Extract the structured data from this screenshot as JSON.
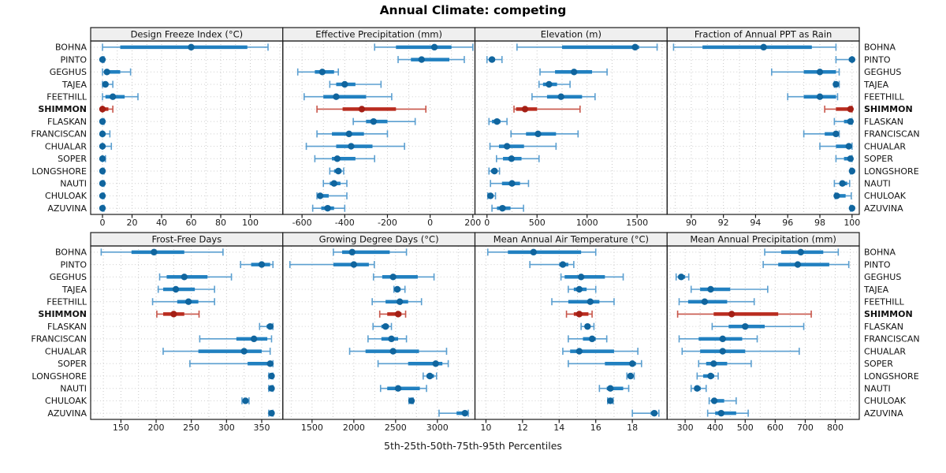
{
  "header": {
    "title": "Annual Climate: competing"
  },
  "footer": {
    "xlabel": "5th-25th-50th-75th-95th Percentiles"
  },
  "sites": [
    "BOHNA",
    "PINTO",
    "GEGHUS",
    "TAJEA",
    "FEETHILL",
    "SHIMMON",
    "FLASKAN",
    "FRANCISCAN",
    "CHUALAR",
    "SOPER",
    "LONGSHORE",
    "NAUTI",
    "CHULOAK",
    "AZUVINA"
  ],
  "highlight_site": "SHIMMON",
  "colors": {
    "blue_thin": "#5b9fd0",
    "blue_thick": "#2180c0",
    "blue_dot": "#10659e",
    "red_thin": "#c8564a",
    "red_thick": "#b92c1f",
    "red_dot": "#a41f15",
    "grid": "#c9c9c9",
    "row_line": "#cfcfcf",
    "panel_border": "#1a1a1a",
    "header_fill": "#efefef",
    "tick_text": "#1a1a1a"
  },
  "chart_data": {
    "type": "interval",
    "note": "horizontal 5-25-50-75-95 percentile intervals per site; dot = median, thick bar = 25-75, thin whisker = 5-95",
    "legend_position": "none",
    "grid": "dotted",
    "panels": [
      {
        "title": "Design Freeze Index (°C)",
        "xlim": [
          -8,
          122
        ],
        "ticks": [
          0,
          20,
          40,
          60,
          80,
          100
        ],
        "grid_step": 10,
        "values": [
          [
            0,
            12,
            60,
            98,
            112
          ],
          [
            0,
            0,
            0,
            0,
            1
          ],
          [
            0,
            2,
            3,
            12,
            19
          ],
          [
            0,
            1,
            2,
            4,
            7
          ],
          [
            0,
            2,
            7,
            15,
            24
          ],
          [
            0,
            0,
            0,
            4,
            7
          ],
          [
            0,
            0,
            0,
            0,
            1
          ],
          [
            0,
            0,
            0,
            1,
            5
          ],
          [
            0,
            0,
            0,
            1,
            6
          ],
          [
            0,
            0,
            0,
            0,
            2
          ],
          [
            0,
            0,
            0,
            0,
            1
          ],
          [
            0,
            0,
            0,
            0,
            1
          ],
          [
            0,
            0,
            0,
            0,
            1
          ],
          [
            0,
            0,
            0,
            0,
            1
          ]
        ]
      },
      {
        "title": "Effective Precipitation (mm)",
        "xlim": [
          -690,
          210
        ],
        "ticks": [
          -600,
          -400,
          -200,
          0,
          200
        ],
        "grid_step": 100,
        "values": [
          [
            -260,
            -160,
            20,
            100,
            200
          ],
          [
            -150,
            -90,
            -40,
            90,
            160
          ],
          [
            -620,
            -540,
            -505,
            -450,
            -430
          ],
          [
            -470,
            -440,
            -400,
            -350,
            -230
          ],
          [
            -590,
            -500,
            -440,
            -300,
            -180
          ],
          [
            -530,
            -410,
            -320,
            -160,
            -20
          ],
          [
            -360,
            -300,
            -265,
            -200,
            -70
          ],
          [
            -530,
            -460,
            -380,
            -310,
            -200
          ],
          [
            -580,
            -440,
            -370,
            -270,
            -120
          ],
          [
            -540,
            -460,
            -435,
            -350,
            -260
          ],
          [
            -470,
            -450,
            -430,
            -415,
            -405
          ],
          [
            -500,
            -470,
            -450,
            -420,
            -390
          ],
          [
            -530,
            -525,
            -515,
            -475,
            -390
          ],
          [
            -550,
            -510,
            -480,
            -450,
            -400
          ]
        ]
      },
      {
        "title": "Elevation (m)",
        "xlim": [
          -120,
          1800
        ],
        "ticks": [
          0,
          500,
          1000,
          1500
        ],
        "grid_step": 250,
        "values": [
          [
            300,
            750,
            1480,
            1520,
            1700
          ],
          [
            0,
            20,
            50,
            80,
            150
          ],
          [
            530,
            680,
            870,
            1050,
            1200
          ],
          [
            520,
            560,
            620,
            700,
            830
          ],
          [
            450,
            600,
            740,
            950,
            1080
          ],
          [
            270,
            290,
            380,
            500,
            930
          ],
          [
            20,
            50,
            100,
            135,
            200
          ],
          [
            240,
            390,
            510,
            690,
            910
          ],
          [
            30,
            120,
            200,
            370,
            690
          ],
          [
            95,
            160,
            245,
            345,
            520
          ],
          [
            20,
            40,
            75,
            105,
            125
          ],
          [
            35,
            150,
            250,
            330,
            415
          ],
          [
            8,
            20,
            35,
            60,
            85
          ],
          [
            50,
            100,
            155,
            235,
            365
          ]
        ]
      },
      {
        "title": "Fraction of Annual PPT as Rain",
        "xlim": [
          88.5,
          100.45
        ],
        "ticks": [
          90,
          92,
          94,
          96,
          98,
          100
        ],
        "grid_step": 1,
        "values": [
          [
            88.9,
            90.7,
            94.5,
            97.5,
            99.0
          ],
          [
            99.0,
            99.8,
            100,
            100,
            100
          ],
          [
            95.0,
            97.0,
            98.0,
            99.0,
            99.2
          ],
          [
            98.9,
            99.0,
            99.0,
            99.1,
            99.2
          ],
          [
            96.0,
            97.0,
            98.0,
            99.0,
            99.1
          ],
          [
            98.3,
            99.0,
            99.9,
            100,
            100
          ],
          [
            98.9,
            99.5,
            99.9,
            100,
            100
          ],
          [
            97.0,
            98.3,
            99.0,
            99.1,
            99.2
          ],
          [
            98.0,
            99.0,
            99.8,
            100,
            100
          ],
          [
            99.0,
            99.5,
            99.9,
            100,
            100
          ],
          [
            99.9,
            99.95,
            100,
            100,
            100
          ],
          [
            98.9,
            99.3,
            99.4,
            99.7,
            99.85
          ],
          [
            98.95,
            99.0,
            99.05,
            99.6,
            99.95
          ],
          [
            99.9,
            99.95,
            100,
            100,
            100
          ]
        ]
      },
      {
        "title": "Frost-Free Days",
        "xlim": [
          107,
          380
        ],
        "ticks": [
          150,
          200,
          250,
          300,
          350
        ],
        "grid_step": 25,
        "values": [
          [
            122,
            165,
            197,
            240,
            295
          ],
          [
            320,
            335,
            350,
            362,
            366
          ],
          [
            205,
            215,
            240,
            273,
            307
          ],
          [
            203,
            210,
            228,
            255,
            283
          ],
          [
            195,
            230,
            246,
            260,
            283
          ],
          [
            201,
            210,
            225,
            240,
            261
          ],
          [
            347,
            357,
            362,
            365,
            366
          ],
          [
            262,
            314,
            339,
            358,
            364
          ],
          [
            210,
            260,
            325,
            350,
            362
          ],
          [
            248,
            330,
            362,
            365,
            366
          ],
          [
            360,
            362,
            364,
            365,
            366
          ],
          [
            360,
            362,
            364,
            365,
            366
          ],
          [
            322,
            325,
            327,
            330,
            332
          ],
          [
            360,
            362,
            364,
            365,
            366
          ]
        ]
      },
      {
        "title": "Growing Degree Days (°C)",
        "xlim": [
          1150,
          3450
        ],
        "ticks": [
          1500,
          2000,
          2500,
          3000
        ],
        "grid_step": 250,
        "values": [
          [
            1755,
            1860,
            1980,
            2430,
            2630
          ],
          [
            1235,
            1755,
            2000,
            2180,
            2245
          ],
          [
            2235,
            2340,
            2470,
            2765,
            2960
          ],
          [
            2480,
            2495,
            2520,
            2560,
            2612
          ],
          [
            2220,
            2380,
            2550,
            2650,
            2810
          ],
          [
            2310,
            2400,
            2530,
            2570,
            2620
          ],
          [
            2230,
            2330,
            2380,
            2420,
            2450
          ],
          [
            2170,
            2330,
            2450,
            2530,
            2630
          ],
          [
            1950,
            2140,
            2470,
            2780,
            3110
          ],
          [
            2290,
            2650,
            2980,
            3060,
            3130
          ],
          [
            2830,
            2870,
            2910,
            2960,
            2990
          ],
          [
            2320,
            2400,
            2530,
            2790,
            2870
          ],
          [
            2660,
            2680,
            2690,
            2700,
            2710
          ],
          [
            3020,
            3230,
            3330,
            3360,
            3370
          ]
        ]
      },
      {
        "title": "Mean Annual Air Temperature (°C)",
        "xlim": [
          9.4,
          19.9
        ],
        "ticks": [
          10,
          12,
          14,
          16,
          18
        ],
        "grid_step": 1,
        "values": [
          [
            10.1,
            11.2,
            12.6,
            15.2,
            16.0
          ],
          [
            12.4,
            14.0,
            14.2,
            14.5,
            14.8
          ],
          [
            14.1,
            14.3,
            15.2,
            16.5,
            17.5
          ],
          [
            14.5,
            14.8,
            15.1,
            15.5,
            16.0
          ],
          [
            13.6,
            14.5,
            15.7,
            16.2,
            17.0
          ],
          [
            14.4,
            14.8,
            15.1,
            15.6,
            15.8
          ],
          [
            15.2,
            15.4,
            15.55,
            15.7,
            15.9
          ],
          [
            14.5,
            15.3,
            15.8,
            16.0,
            16.6
          ],
          [
            14.2,
            14.6,
            15.1,
            17.0,
            18.3
          ],
          [
            14.5,
            16.5,
            18.0,
            18.2,
            18.5
          ],
          [
            17.7,
            17.8,
            17.9,
            18.0,
            18.1
          ],
          [
            16.2,
            16.6,
            16.8,
            17.5,
            17.8
          ],
          [
            16.65,
            16.75,
            16.8,
            16.85,
            16.95
          ],
          [
            18.0,
            19.0,
            19.2,
            19.35,
            19.45
          ]
        ]
      },
      {
        "title": "Mean Annual Precipitation (mm)",
        "xlim": [
          240,
          880
        ],
        "ticks": [
          300,
          400,
          500,
          600,
          700,
          800
        ],
        "grid_step": 50,
        "values": [
          [
            565,
            620,
            685,
            760,
            810
          ],
          [
            560,
            610,
            675,
            780,
            845
          ],
          [
            270,
            277,
            287,
            300,
            312
          ],
          [
            320,
            350,
            385,
            450,
            575
          ],
          [
            280,
            310,
            365,
            440,
            530
          ],
          [
            275,
            395,
            455,
            610,
            720
          ],
          [
            390,
            445,
            500,
            565,
            695
          ],
          [
            280,
            345,
            425,
            490,
            540
          ],
          [
            290,
            350,
            425,
            500,
            680
          ],
          [
            345,
            370,
            395,
            440,
            520
          ],
          [
            340,
            360,
            385,
            397,
            410
          ],
          [
            320,
            330,
            340,
            352,
            370
          ],
          [
            380,
            390,
            397,
            430,
            470
          ],
          [
            375,
            400,
            420,
            470,
            510
          ]
        ]
      }
    ]
  }
}
